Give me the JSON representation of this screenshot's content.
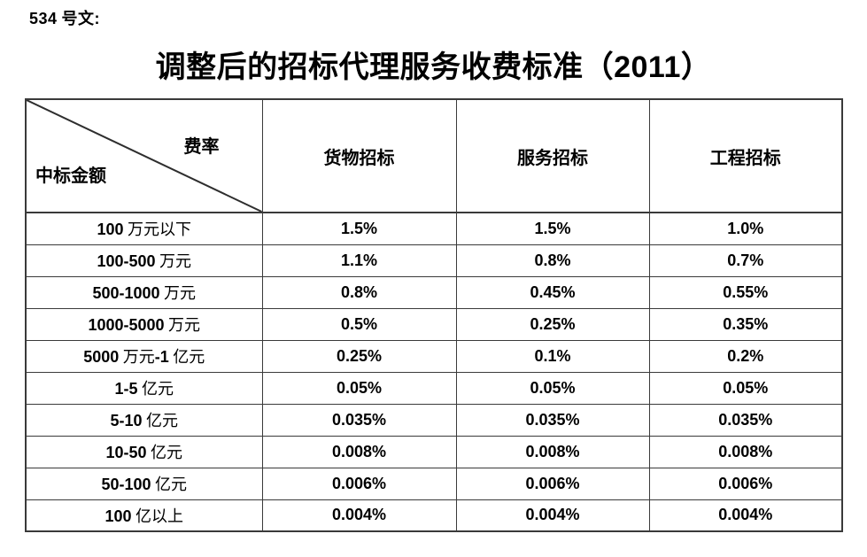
{
  "doc_number": "534 号文:",
  "title": "调整后的招标代理服务收费标准（2011）",
  "table": {
    "corner": {
      "top_right": "费率",
      "bottom_left": "中标金额"
    },
    "columns": [
      "货物招标",
      "服务招标",
      "工程招标"
    ],
    "rows": [
      {
        "label": "100 万元以下",
        "values": [
          "1.5%",
          "1.5%",
          "1.0%"
        ]
      },
      {
        "label": "100-500 万元",
        "values": [
          "1.1%",
          "0.8%",
          "0.7%"
        ]
      },
      {
        "label": "500-1000 万元",
        "values": [
          "0.8%",
          "0.45%",
          "0.55%"
        ]
      },
      {
        "label": "1000-5000 万元",
        "values": [
          "0.5%",
          "0.25%",
          "0.35%"
        ]
      },
      {
        "label": "5000 万元-1 亿元",
        "values": [
          "0.25%",
          "0.1%",
          "0.2%"
        ]
      },
      {
        "label": "1-5 亿元",
        "values": [
          "0.05%",
          "0.05%",
          "0.05%"
        ]
      },
      {
        "label": "5-10 亿元",
        "values": [
          "0.035%",
          "0.035%",
          "0.035%"
        ]
      },
      {
        "label": "10-50 亿元",
        "values": [
          "0.008%",
          "0.008%",
          "0.008%"
        ]
      },
      {
        "label": "50-100 亿元",
        "values": [
          "0.006%",
          "0.006%",
          "0.006%"
        ]
      },
      {
        "label": "100 亿以上",
        "values": [
          "0.004%",
          "0.004%",
          "0.004%"
        ]
      }
    ]
  },
  "colors": {
    "text": "#000000",
    "border": "#3a3a3a",
    "background": "#ffffff"
  }
}
